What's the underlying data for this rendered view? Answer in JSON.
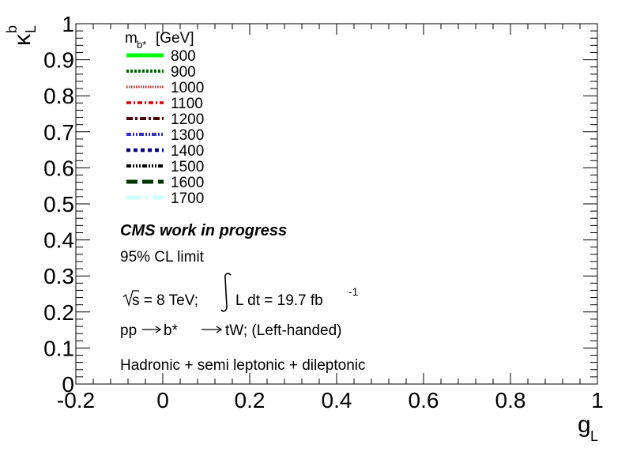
{
  "chart_data": {
    "type": "line",
    "xlim": [
      -0.2,
      1
    ],
    "ylim": [
      0,
      1
    ],
    "x_ticks": [
      "-0.2",
      "0",
      "0.2",
      "0.4",
      "0.6",
      "0.8",
      "1"
    ],
    "y_ticks": [
      "0",
      "0.1",
      "0.2",
      "0.3",
      "0.4",
      "0.5",
      "0.6",
      "0.7",
      "0.8",
      "0.9",
      "1"
    ],
    "xlabel": {
      "main": "g",
      "sub": "L"
    },
    "ylabel": {
      "main": "κ",
      "sup": "b",
      "sub": "L"
    },
    "legend": {
      "title": {
        "main": "m",
        "sub": "b*",
        "unit": "[GeV]"
      },
      "placement": "top-left",
      "entries": [
        {
          "label": "800",
          "color": "#00ff00",
          "style": "solid-thick"
        },
        {
          "label": "900",
          "color": "#006400",
          "style": "dotted"
        },
        {
          "label": "1000",
          "color": "#b22222",
          "style": "fine-dotted"
        },
        {
          "label": "1100",
          "color": "#cc0000",
          "style": "dash-dot"
        },
        {
          "label": "1200",
          "color": "#4a0000",
          "style": "dash-dot-long"
        },
        {
          "label": "1300",
          "color": "#3333cc",
          "style": "dash-dot-dot"
        },
        {
          "label": "1400",
          "color": "#000080",
          "style": "dashed-short"
        },
        {
          "label": "1500",
          "color": "#000000",
          "style": "dash-dot-dot-dot"
        },
        {
          "label": "1600",
          "color": "#003300",
          "style": "dashed-long"
        },
        {
          "label": "1700",
          "color": "#ccffff",
          "style": "long-dash-dot"
        }
      ]
    },
    "series": [],
    "grid": false
  },
  "annotations": {
    "experiment": "CMS work in progress",
    "cl_limit": "95% CL limit",
    "sqrt_s": "s = 8 TeV;",
    "lumi_text": "L dt = 19.7 fb",
    "lumi_exp": "-1",
    "process_a": "pp",
    "process_b": "b*",
    "process_c": "tW; (Left-handed)",
    "channels": "Hadronic + semi leptonic + dileptonic"
  }
}
